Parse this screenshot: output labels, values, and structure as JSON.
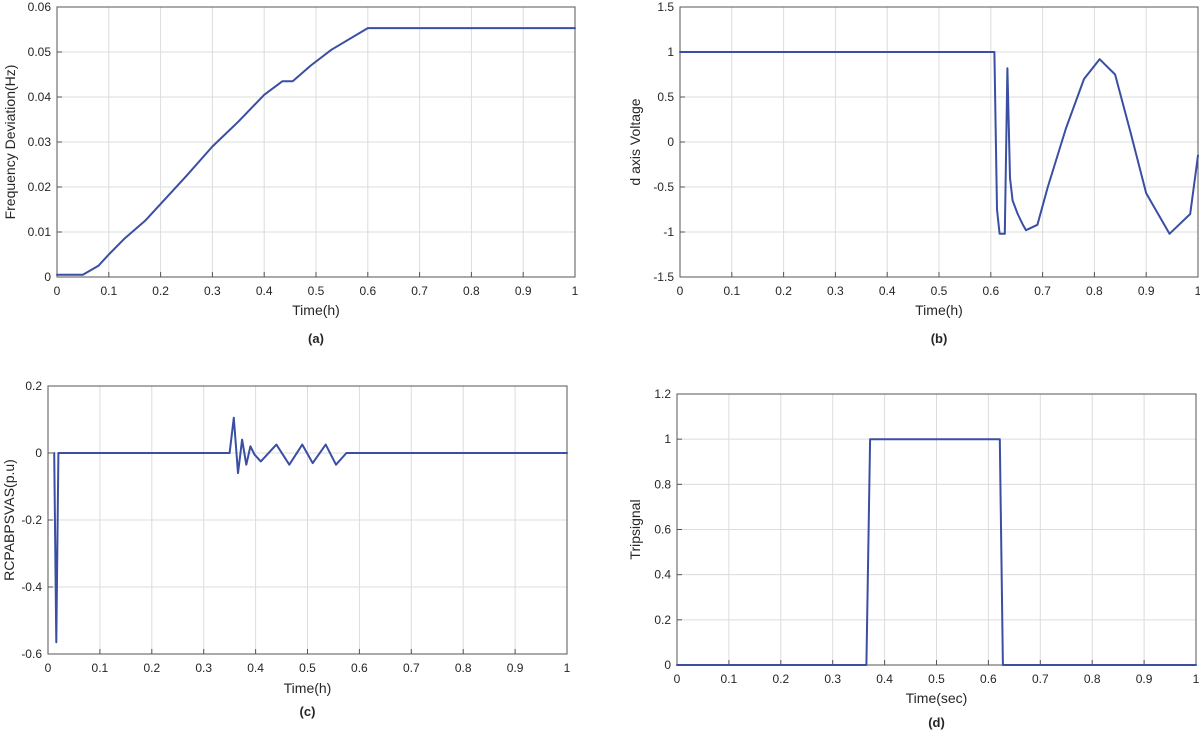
{
  "chart_data": [
    {
      "type": "line",
      "panel": "a",
      "caption": "(a)",
      "xlabel": "Time(h)",
      "ylabel": "Frequency Deviation(Hz)",
      "xlim": [
        0,
        1
      ],
      "ylim": [
        0,
        0.06
      ],
      "xticks": [
        0,
        0.1,
        0.2,
        0.3,
        0.4,
        0.5,
        0.6,
        0.7,
        0.8,
        0.9,
        1
      ],
      "xtick_labels": [
        "0",
        "0.1",
        "0.2",
        "0.3",
        "0.4",
        "0.5",
        "0.6",
        "0.7",
        "0.8",
        "0.9",
        "1"
      ],
      "yticks": [
        0,
        0.01,
        0.02,
        0.03,
        0.04,
        0.05,
        0.06
      ],
      "ytick_labels": [
        "0",
        "0.01",
        "0.02",
        "0.03",
        "0.04",
        "0.05",
        "0.06"
      ],
      "grid": true,
      "series": [
        {
          "color": "#3a4ea3",
          "x": [
            0,
            0.05,
            0.08,
            0.1,
            0.13,
            0.17,
            0.21,
            0.25,
            0.3,
            0.35,
            0.4,
            0.435,
            0.455,
            0.49,
            0.53,
            0.6,
            1.0
          ],
          "y": [
            0.0005,
            0.0005,
            0.0025,
            0.005,
            0.0085,
            0.0125,
            0.0175,
            0.0225,
            0.029,
            0.0345,
            0.0405,
            0.0435,
            0.0435,
            0.047,
            0.0505,
            0.0553,
            0.0553
          ]
        }
      ]
    },
    {
      "type": "line",
      "panel": "b",
      "caption": "(b)",
      "xlabel": "Time(h)",
      "ylabel": "d axis Voltage",
      "xlim": [
        0,
        1
      ],
      "ylim": [
        -1.5,
        1.5
      ],
      "xticks": [
        0,
        0.1,
        0.2,
        0.3,
        0.4,
        0.5,
        0.6,
        0.7,
        0.8,
        0.9,
        1
      ],
      "xtick_labels": [
        "0",
        "0.1",
        "0.2",
        "0.3",
        "0.4",
        "0.5",
        "0.6",
        "0.7",
        "0.8",
        "0.9",
        "1"
      ],
      "yticks": [
        -1.5,
        -1,
        -0.5,
        0,
        0.5,
        1,
        1.5
      ],
      "ytick_labels": [
        "-1.5",
        "-1",
        "-0.5",
        "0",
        "0.5",
        "1",
        "1.5"
      ],
      "grid": true,
      "series": [
        {
          "color": "#3a4ea3",
          "x": [
            0,
            0.607,
            0.612,
            0.617,
            0.627,
            0.632,
            0.637,
            0.642,
            0.652,
            0.662,
            0.668,
            0.69,
            0.71,
            0.745,
            0.78,
            0.81,
            0.84,
            0.87,
            0.9,
            0.945,
            0.985,
            1.0
          ],
          "y": [
            1.0,
            1.0,
            -0.75,
            -1.02,
            -1.02,
            0.82,
            -0.4,
            -0.65,
            -0.8,
            -0.92,
            -0.98,
            -0.92,
            -0.5,
            0.15,
            0.7,
            0.92,
            0.75,
            0.1,
            -0.57,
            -1.02,
            -0.8,
            -0.15
          ]
        }
      ]
    },
    {
      "type": "line",
      "panel": "c",
      "caption": "(c)",
      "xlabel": "Time(h)",
      "ylabel": "RCPABPSVAS(p.u)",
      "xlim": [
        0,
        1
      ],
      "ylim": [
        -0.6,
        0.2
      ],
      "xticks": [
        0,
        0.1,
        0.2,
        0.3,
        0.4,
        0.5,
        0.6,
        0.7,
        0.8,
        0.9,
        1
      ],
      "xtick_labels": [
        "0",
        "0.1",
        "0.2",
        "0.3",
        "0.4",
        "0.5",
        "0.6",
        "0.7",
        "0.8",
        "0.9",
        "1"
      ],
      "yticks": [
        -0.6,
        -0.4,
        -0.2,
        0,
        0.2
      ],
      "ytick_labels": [
        "-0.6",
        "-0.4",
        "-0.2",
        "0",
        "0.2"
      ],
      "grid": true,
      "series": [
        {
          "color": "#3a4ea3",
          "x": [
            0.012,
            0.016,
            0.02,
            0.35,
            0.358,
            0.366,
            0.374,
            0.382,
            0.39,
            0.398,
            0.41,
            0.44,
            0.465,
            0.49,
            0.51,
            0.535,
            0.555,
            0.575,
            1.0
          ],
          "y": [
            0.0,
            -0.565,
            0.0,
            0.0,
            0.105,
            -0.06,
            0.04,
            -0.035,
            0.02,
            -0.005,
            -0.025,
            0.025,
            -0.035,
            0.025,
            -0.03,
            0.025,
            -0.035,
            0.0,
            0.0
          ]
        }
      ]
    },
    {
      "type": "line",
      "panel": "d",
      "caption": "(d)",
      "xlabel": "Time(sec)",
      "ylabel": "Tripsignal",
      "xlim": [
        0,
        1
      ],
      "ylim": [
        0,
        1.2
      ],
      "xticks": [
        0,
        0.1,
        0.2,
        0.3,
        0.4,
        0.5,
        0.6,
        0.7,
        0.8,
        0.9,
        1
      ],
      "xtick_labels": [
        "0",
        "0.1",
        "0.2",
        "0.3",
        "0.4",
        "0.5",
        "0.6",
        "0.7",
        "0.8",
        "0.9",
        "1"
      ],
      "yticks": [
        0,
        0.2,
        0.4,
        0.6,
        0.8,
        1,
        1.2
      ],
      "ytick_labels": [
        "0",
        "0.2",
        "0.4",
        "0.6",
        "0.8",
        "1",
        "1.2"
      ],
      "grid": true,
      "series": [
        {
          "color": "#3a4ea3",
          "x": [
            0,
            0.365,
            0.372,
            0.622,
            0.628,
            1.0
          ],
          "y": [
            0,
            0,
            1,
            1,
            0,
            0
          ]
        }
      ]
    }
  ]
}
